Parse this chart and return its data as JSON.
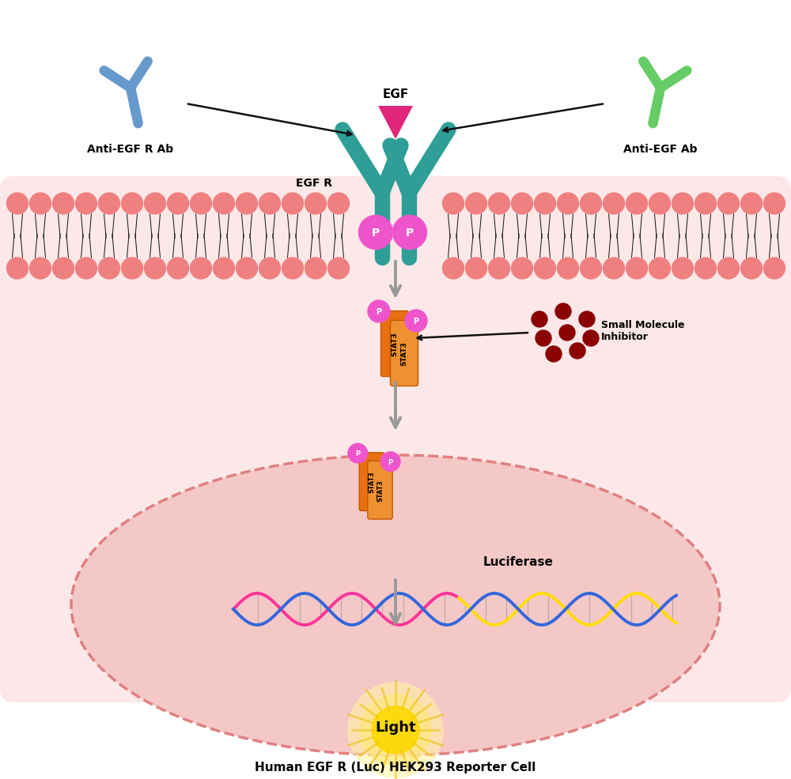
{
  "bottom_label": "Human EGF R (Luc) HEK293 Reporter Cell",
  "light_label": "Light",
  "luciferase_label": "Luciferase",
  "egf_label": "EGF",
  "egfr_label": "EGF R",
  "anti_egfr_label": "Anti-EGF R Ab",
  "anti_egf_label": "Anti-EGF Ab",
  "small_mol_label": "Small Molecule\nInhibitor",
  "bg_color": "#ffffff",
  "cell_fill": "#fce8e8",
  "membrane_ball_color": "#f08080",
  "teal_color": "#2e9e96",
  "egf_color": "#e0267a",
  "blue_ab_color": "#6699cc",
  "green_ab_color": "#66cc66",
  "p_circle_color": "#ee55cc",
  "stat3_dark": "#e87010",
  "stat3_light": "#f09030",
  "stat3_edge": "#c05800",
  "small_mol_color": "#8b0000",
  "arrow_gray": "#999999",
  "arrow_black": "#111111",
  "nucleus_fill": "#f5c8c8",
  "nucleus_edge": "#e08080",
  "dna_pink": "#ff3399",
  "dna_blue": "#3366dd",
  "dna_gold": "#ffdd00",
  "light_yellow": "#ffd700",
  "light_pale": "#fff5a0"
}
